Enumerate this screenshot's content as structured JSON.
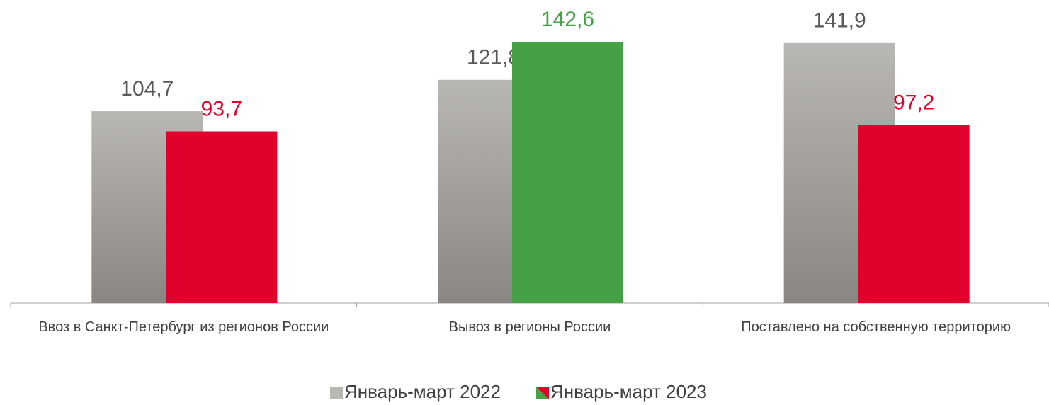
{
  "chart_data": {
    "type": "bar",
    "categories": [
      "Ввоз в Санкт-Петербург из регионов России",
      "Вывоз в регионы России",
      "Поставлено на собственную территорию"
    ],
    "series": [
      {
        "name": "Январь-март 2022",
        "color": "#b9b7b4",
        "values": [
          104.7,
          121.8,
          141.9
        ],
        "value_labels": [
          "104,7",
          "121,8",
          "141,9"
        ]
      },
      {
        "name": "Январь-март 2023",
        "colors": [
          "#e0002b",
          "#46a046",
          "#e0002b"
        ],
        "values": [
          93.7,
          142.6,
          97.2
        ],
        "value_labels": [
          "93,7",
          "142,6",
          "97,2"
        ]
      }
    ],
    "legend": "bottom"
  }
}
